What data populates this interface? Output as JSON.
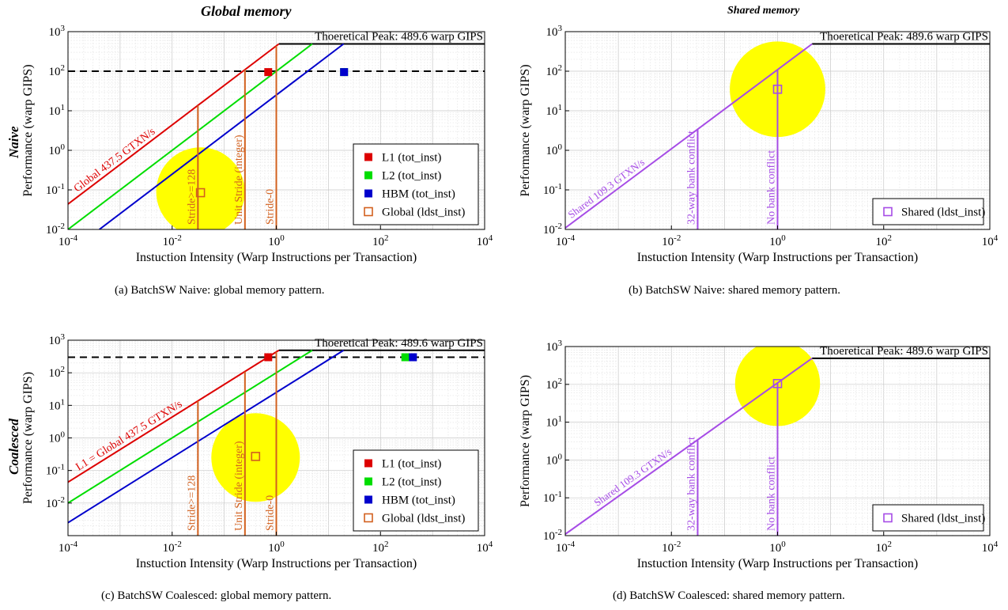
{
  "headings": {
    "global": "Global memory",
    "shared": "Shared memory",
    "naive": "Naive",
    "coalesced": "Coalesced"
  },
  "captions": {
    "a": "(a) BatchSW Naive: global memory pattern.",
    "b": "(b) BatchSW Naive: shared memory pattern.",
    "c": "(c) BatchSW Coalesced: global memory pattern.",
    "d": "(d) BatchSW Coalesced: shared memory pattern."
  },
  "colors": {
    "l1": "#dd0000",
    "l2": "#00dd00",
    "hbm": "#0000cc",
    "global_marker": "#d2601e",
    "stride_lines": "#d2601e",
    "shared": "#a64ce6",
    "highlight": "#ffff00",
    "peak": "#000000",
    "grid": "#cccccc"
  },
  "chart_data": [
    {
      "id": "a",
      "type": "scatter",
      "subtype": "instruction-roofline",
      "title": "",
      "xlabel": "Instuction Intensity (Warp Instructions per Transaction)",
      "ylabel": "Performance (warp GIPS)",
      "x_scale": "log",
      "y_scale": "log",
      "xlim": [
        0.0001,
        10000
      ],
      "ylim": [
        0.01,
        1000
      ],
      "x_ticks": [
        0.0001,
        0.01,
        1,
        100,
        10000
      ],
      "x_tick_labels": [
        "10^{-4}",
        "10^{-2}",
        "10^{0}",
        "10^{2}",
        "10^{4}"
      ],
      "y_ticks": [
        0.01,
        0.1,
        1,
        10,
        100,
        1000
      ],
      "y_tick_labels": [
        "10^{-2}",
        "10^{-1}",
        "10^{0}",
        "10^{1}",
        "10^{2}",
        "10^{3}"
      ],
      "grid": true,
      "peak": {
        "value": 489.6,
        "label": "Thoeretical Peak: 489.6 warp GIPS"
      },
      "dashed_level": 100,
      "rooflines": [
        {
          "key": "l1",
          "bandwidth": 437.5,
          "label": "Global 437.5 GTXN/s",
          "label_x": 0.00015,
          "label_rotate": -30,
          "label_size": 14
        },
        {
          "key": "l2",
          "bandwidth": 100
        },
        {
          "key": "hbm",
          "bandwidth": 25
        }
      ],
      "verticals": [
        {
          "x": 0.03125,
          "label": "Stride>=128"
        },
        {
          "x": 0.25,
          "label": "Unit Stride (integer)"
        },
        {
          "x": 1,
          "label": "Stride-0"
        }
      ],
      "points": [
        {
          "series": "L1 (tot_inst)",
          "key": "l1",
          "x": 0.7,
          "y": 95,
          "filled": true
        },
        {
          "series": "L2 (tot_inst)",
          "key": "l2",
          "x": 20,
          "y": 95,
          "filled": true
        },
        {
          "series": "HBM (tot_inst)",
          "key": "hbm",
          "x": 20,
          "y": 95,
          "filled": true
        },
        {
          "series": "Global (ldst_inst)",
          "key": "global_marker",
          "x": 0.035,
          "y": 0.085,
          "filled": false
        }
      ],
      "highlight": {
        "x": 0.035,
        "y": 0.09,
        "radius_decades": 0.85
      },
      "legend": {
        "position": "bottom-right",
        "entries": [
          {
            "label": "L1 (tot_inst)",
            "key": "l1",
            "filled": true
          },
          {
            "label": "L2 (tot_inst)",
            "key": "l2",
            "filled": true
          },
          {
            "label": "HBM (tot_inst)",
            "key": "hbm",
            "filled": true
          },
          {
            "label": "Global (ldst_inst)",
            "key": "global_marker",
            "filled": false
          }
        ]
      }
    },
    {
      "id": "b",
      "type": "scatter",
      "subtype": "instruction-roofline",
      "title": "",
      "xlabel": "Instuction Intensity (Warp Instructions per Transaction)",
      "ylabel": "Performance (warp GIPS)",
      "x_scale": "log",
      "y_scale": "log",
      "xlim": [
        0.0001,
        10000
      ],
      "ylim": [
        0.01,
        1000
      ],
      "x_ticks": [
        0.0001,
        0.01,
        1,
        100,
        10000
      ],
      "x_tick_labels": [
        "10^{-4}",
        "10^{-2}",
        "10^{0}",
        "10^{2}",
        "10^{4}"
      ],
      "y_ticks": [
        0.01,
        0.1,
        1,
        10,
        100,
        1000
      ],
      "y_tick_labels": [
        "10^{-2}",
        "10^{-1}",
        "10^{0}",
        "10^{1}",
        "10^{2}",
        "10^{3}"
      ],
      "grid": true,
      "peak": {
        "value": 489.6,
        "label": "Thoeretical Peak: 489.6 warp GIPS"
      },
      "dashed_level": null,
      "rooflines": [
        {
          "key": "shared",
          "bandwidth": 109.3,
          "label": "Shared 109.3 GTXN/s",
          "label_x": 0.00013,
          "label_rotate": -22,
          "label_size": 13
        }
      ],
      "verticals": [
        {
          "x": 0.03125,
          "label": "32-way bank conflict"
        },
        {
          "x": 1,
          "label": "No bank conflict"
        }
      ],
      "points": [
        {
          "series": "Shared (ldst_inst)",
          "key": "shared",
          "x": 1,
          "y": 35,
          "filled": false
        }
      ],
      "highlight": {
        "x": 1,
        "y": 35,
        "radius_decades": 0.9
      },
      "legend": {
        "position": "bottom-right",
        "entries": [
          {
            "label": "Shared (ldst_inst)",
            "key": "shared",
            "filled": false
          }
        ]
      }
    },
    {
      "id": "c",
      "type": "scatter",
      "subtype": "instruction-roofline",
      "title": "",
      "xlabel": "Instuction Intensity (Warp Instructions per Transaction)",
      "ylabel": "Performance (warp GIPS)",
      "x_scale": "log",
      "y_scale": "log",
      "xlim": [
        0.0001,
        10000
      ],
      "ylim": [
        0.001,
        1000
      ],
      "x_ticks": [
        0.0001,
        0.01,
        1,
        100,
        10000
      ],
      "x_tick_labels": [
        "10^{-4}",
        "10^{-2}",
        "10^{0}",
        "10^{2}",
        "10^{4}"
      ],
      "y_ticks": [
        0.01,
        0.1,
        1,
        10,
        100,
        1000
      ],
      "y_tick_labels": [
        "10^{-2}",
        "10^{-1}",
        "10^{0}",
        "10^{1}",
        "10^{2}",
        "10^{3}"
      ],
      "grid": true,
      "peak": {
        "value": 489.6,
        "label": "Thoeretical Peak: 489.6 warp GIPS"
      },
      "dashed_level": 300,
      "rooflines": [
        {
          "key": "l1",
          "bandwidth": 437.5,
          "label": "L1 = Global 437.5 GTXN/s",
          "label_x": 0.00016,
          "label_rotate": -30,
          "label_size": 14
        },
        {
          "key": "l2",
          "bandwidth": 100
        },
        {
          "key": "hbm",
          "bandwidth": 25
        }
      ],
      "verticals": [
        {
          "x": 0.03125,
          "label": "Stride>=128"
        },
        {
          "x": 0.25,
          "label": "Unit Stride (integer)"
        },
        {
          "x": 1,
          "label": "Stride-0"
        }
      ],
      "points": [
        {
          "series": "L1 (tot_inst)",
          "key": "l1",
          "x": 0.7,
          "y": 300,
          "filled": true
        },
        {
          "series": "L2 (tot_inst)",
          "key": "l2",
          "x": 300,
          "y": 300,
          "filled": true
        },
        {
          "series": "HBM (tot_inst)",
          "key": "hbm",
          "x": 420,
          "y": 300,
          "filled": true
        },
        {
          "series": "Global (ldst_inst)",
          "key": "global_marker",
          "x": 0.4,
          "y": 0.27,
          "filled": false
        }
      ],
      "highlight": {
        "x": 0.4,
        "y": 0.25,
        "radius_decades": 0.85
      },
      "legend": {
        "position": "bottom-right",
        "entries": [
          {
            "label": "L1 (tot_inst)",
            "key": "l1",
            "filled": true
          },
          {
            "label": "L2 (tot_inst)",
            "key": "l2",
            "filled": true
          },
          {
            "label": "HBM (tot_inst)",
            "key": "hbm",
            "filled": true
          },
          {
            "label": "Global (ldst_inst)",
            "key": "global_marker",
            "filled": false
          }
        ]
      }
    },
    {
      "id": "d",
      "type": "scatter",
      "subtype": "instruction-roofline",
      "title": "",
      "xlabel": "Instuction Intensity (Warp Instructions per Transaction)",
      "ylabel": "Performance (warp GIPS)",
      "x_scale": "log",
      "y_scale": "log",
      "xlim": [
        0.0001,
        10000
      ],
      "ylim": [
        0.01,
        1000
      ],
      "x_ticks": [
        0.0001,
        0.01,
        1,
        100,
        10000
      ],
      "x_tick_labels": [
        "10^{-4}",
        "10^{-2}",
        "10^{0}",
        "10^{2}",
        "10^{4}"
      ],
      "y_ticks": [
        0.01,
        0.1,
        1,
        10,
        100,
        1000
      ],
      "y_tick_labels": [
        "10^{-2}",
        "10^{-1}",
        "10^{0}",
        "10^{1}",
        "10^{2}",
        "10^{3}"
      ],
      "grid": true,
      "peak": {
        "value": 489.6,
        "label": "Thoeretical Peak: 489.6 warp GIPS"
      },
      "dashed_level": null,
      "rooflines": [
        {
          "key": "shared",
          "bandwidth": 109.3,
          "label": "Shared 109.3 GTXN/s",
          "label_x": 0.0004,
          "label_rotate": -22,
          "label_size": 13
        }
      ],
      "verticals": [
        {
          "x": 0.03125,
          "label": "32-way bank conflict"
        },
        {
          "x": 1,
          "label": "No bank conflict"
        }
      ],
      "points": [
        {
          "series": "Shared (ldst_inst)",
          "key": "shared",
          "x": 1,
          "y": 105,
          "filled": false
        }
      ],
      "highlight": {
        "x": 1,
        "y": 105,
        "radius_decades": 0.8
      },
      "legend": {
        "position": "bottom-right",
        "entries": [
          {
            "label": "Shared (ldst_inst)",
            "key": "shared",
            "filled": false
          }
        ]
      }
    }
  ]
}
